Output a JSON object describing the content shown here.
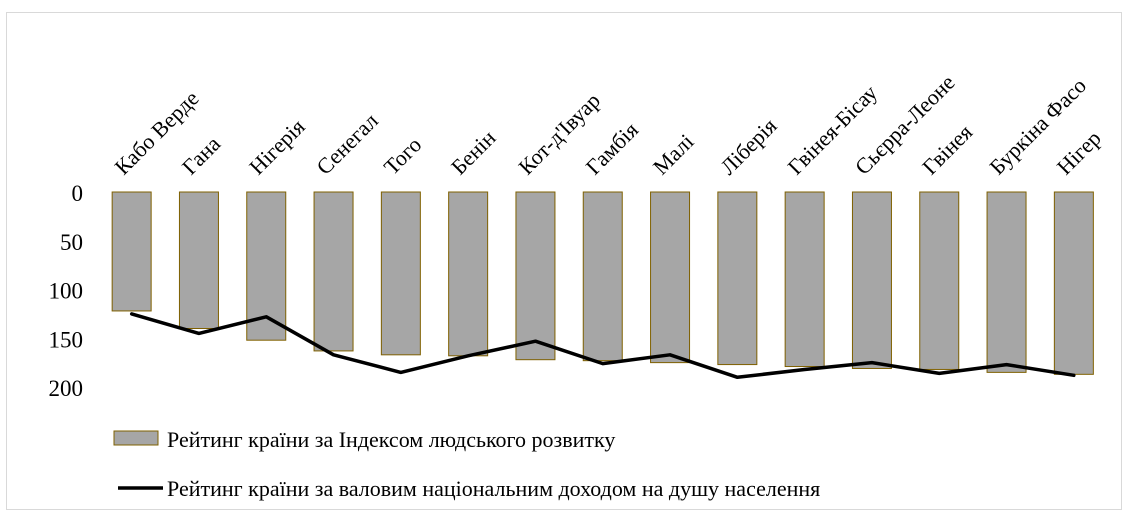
{
  "chart_data": {
    "type": "bar",
    "categories": [
      "Кабо Верде",
      "Гана",
      "Нігерія",
      "Сенегал",
      "Того",
      "Бенін",
      "Кот-д'Івуар",
      "Гамбія",
      "Малі",
      "Ліберія",
      "Гвінея-Бісау",
      "Сьєрра-Леоне",
      "Гвінея",
      "Буркіна Фасо",
      "Нігер"
    ],
    "series": [
      {
        "name": "Рейтинг країни за Індексом людського розвитку",
        "type": "bar",
        "color": "#a6a6a6",
        "edge_color": "#7f6000",
        "values": [
          122,
          140,
          152,
          163,
          167,
          168,
          172,
          173,
          175,
          177,
          179,
          181,
          182,
          185,
          187
        ]
      },
      {
        "name": "Рейтинг країни за валовим національним доходом на душу населення",
        "type": "line",
        "color": "#000000",
        "values": [
          125,
          145,
          128,
          167,
          185,
          168,
          153,
          176,
          167,
          190,
          182,
          175,
          186,
          177,
          188
        ]
      }
    ],
    "y_ticks": [
      "0",
      "50",
      "100",
      "150",
      "200"
    ],
    "ylim": [
      0,
      200
    ],
    "y_inverted": true,
    "title": "",
    "xlabel": "",
    "ylabel": "",
    "grid": false,
    "legend_position": "bottom-left"
  }
}
